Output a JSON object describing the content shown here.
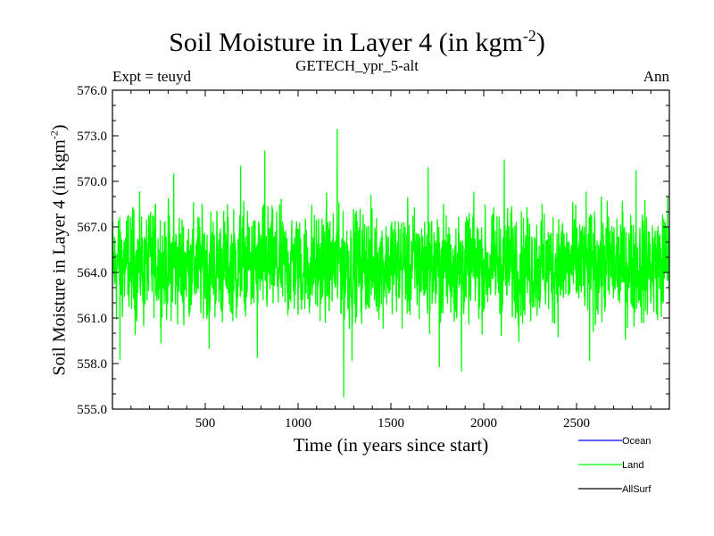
{
  "title_main": "Soil Moisture in Layer 4 (in kgm",
  "title_sup": "-2",
  "title_end": ")",
  "subtitle": "GETECH_ypr_5-alt",
  "expt_label": "Expt = teuyd",
  "season_label": "Ann",
  "chart_data": {
    "type": "line",
    "title": "Soil Moisture in Layer 4 (in kgm-2)",
    "subtitle": "GETECH_ypr_5-alt",
    "xlabel": "Time (in years since start)",
    "ylabel_main": "Soil Moisture in Layer 4 (in kgm",
    "ylabel_sup": "-2",
    "ylabel_end": ")",
    "xlim": [
      0,
      3000
    ],
    "ylim": [
      555.0,
      576.0
    ],
    "x_ticks": [
      500,
      1000,
      1500,
      2000,
      2500
    ],
    "x_tick_labels": [
      "500",
      "1000",
      "1500",
      "2000",
      "2500"
    ],
    "y_ticks": [
      555,
      558,
      561,
      564,
      567,
      570,
      573,
      576
    ],
    "y_tick_labels": [
      "555.0",
      "558.0",
      "561.0",
      "564.0",
      "567.0",
      "570.0",
      "573.0",
      "576.0"
    ],
    "series": [
      {
        "name": "Land",
        "color": "#00ff00",
        "summary": {
          "mean": 564.5,
          "min": 555.8,
          "max": 573.4,
          "n_years": 3000
        },
        "notable_points": [
          {
            "x": 40,
            "y": 558.3
          },
          {
            "x": 330,
            "y": 570.5
          },
          {
            "x": 520,
            "y": 559.0
          },
          {
            "x": 690,
            "y": 571.0
          },
          {
            "x": 780,
            "y": 558.4
          },
          {
            "x": 820,
            "y": 572.0
          },
          {
            "x": 1210,
            "y": 573.4
          },
          {
            "x": 1245,
            "y": 555.8
          },
          {
            "x": 1290,
            "y": 558.2
          },
          {
            "x": 1700,
            "y": 570.9
          },
          {
            "x": 1760,
            "y": 557.8
          },
          {
            "x": 1880,
            "y": 557.5
          },
          {
            "x": 2110,
            "y": 571.4
          },
          {
            "x": 2570,
            "y": 558.2
          },
          {
            "x": 2820,
            "y": 570.7
          },
          {
            "x": 2990,
            "y": 569.0
          }
        ]
      },
      {
        "name": "Ocean",
        "color": "#0000ff"
      },
      {
        "name": "AllSurf",
        "color": "#000000"
      }
    ],
    "legend": [
      {
        "label": "Ocean",
        "color": "#0000ff"
      },
      {
        "label": "Land",
        "color": "#00ff00"
      },
      {
        "label": "AllSurf",
        "color": "#000000"
      }
    ]
  }
}
